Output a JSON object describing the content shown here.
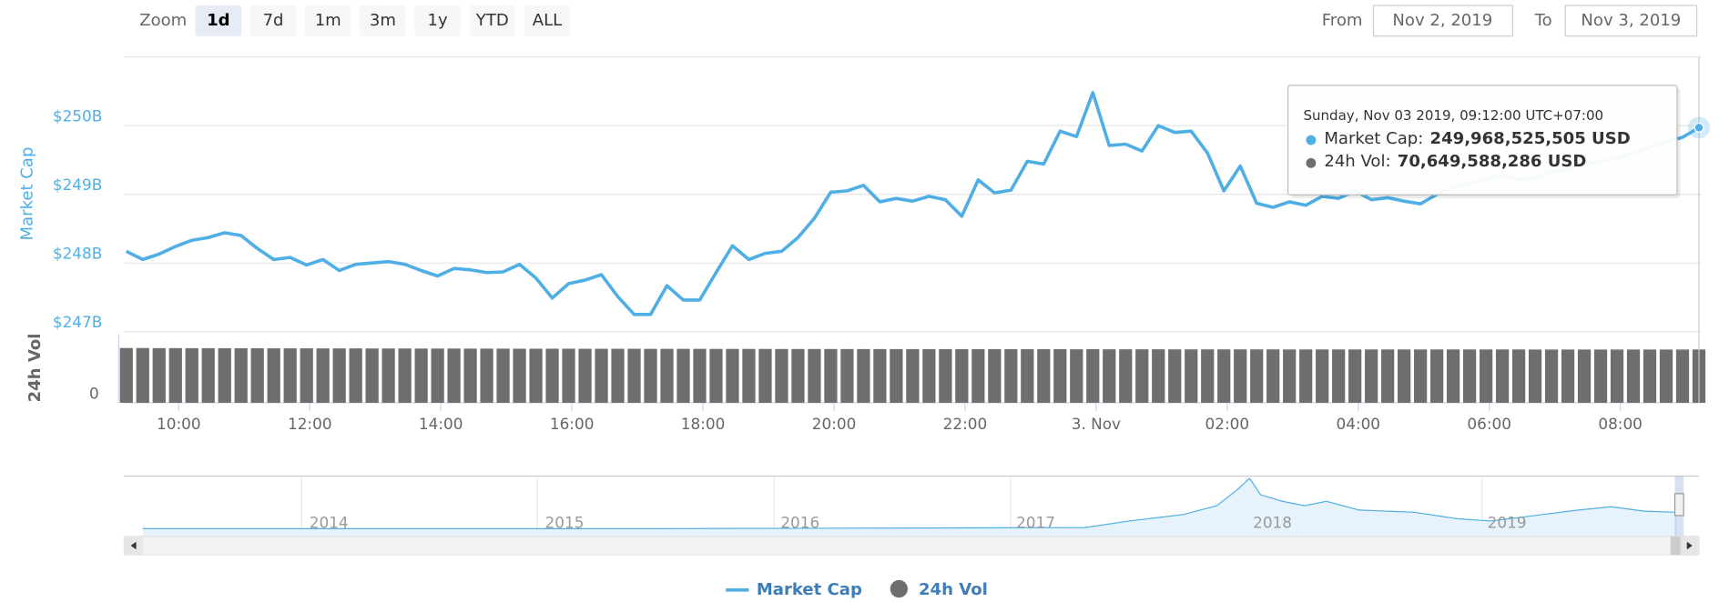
{
  "chart_data": {
    "type": "line",
    "range_selector": {
      "label": "Zoom",
      "buttons": [
        "1d",
        "7d",
        "1m",
        "3m",
        "1y",
        "YTD",
        "ALL"
      ],
      "selected": 0,
      "from_label": "From",
      "from_value": "Nov 2, 2019",
      "to_label": "To",
      "to_value": "Nov 3, 2019"
    },
    "y_axis_title": "Market Cap",
    "y2_axis_title": "24h Vol",
    "x": [
      9.2,
      9.45,
      9.7,
      9.95,
      10.2,
      10.45,
      10.7,
      10.95,
      11.2,
      11.45,
      11.7,
      11.95,
      12.2,
      12.45,
      12.7,
      12.95,
      13.2,
      13.45,
      13.7,
      13.95,
      14.2,
      14.45,
      14.7,
      14.95,
      15.2,
      15.45,
      15.7,
      15.95,
      16.2,
      16.45,
      16.7,
      16.95,
      17.2,
      17.45,
      17.7,
      17.95,
      18.2,
      18.45,
      18.7,
      18.95,
      19.2,
      19.45,
      19.7,
      19.95,
      20.2,
      20.45,
      20.7,
      20.95,
      21.2,
      21.45,
      21.7,
      21.95,
      22.2,
      22.45,
      22.7,
      22.95,
      23.2,
      23.45,
      23.7,
      23.95,
      24.2,
      24.45,
      24.7,
      24.95,
      25.2,
      25.45,
      25.7,
      25.95,
      26.2,
      26.45,
      26.7,
      26.95,
      27.2,
      27.45,
      27.7,
      27.95,
      28.2,
      28.45,
      28.7,
      28.95,
      29.2,
      29.45,
      29.7,
      29.95,
      30.2,
      30.45,
      30.7,
      30.95,
      31.2,
      31.45,
      31.7,
      31.95,
      32.2,
      32.45,
      32.7,
      32.95,
      33.2
    ],
    "xlim": [
      9.2,
      33.2
    ],
    "xticks": [
      {
        "value": 10,
        "label": "10:00"
      },
      {
        "value": 12,
        "label": "12:00"
      },
      {
        "value": 14,
        "label": "14:00"
      },
      {
        "value": 16,
        "label": "16:00"
      },
      {
        "value": 18,
        "label": "18:00"
      },
      {
        "value": 20,
        "label": "20:00"
      },
      {
        "value": 22,
        "label": "22:00"
      },
      {
        "value": 24,
        "label": "3. Nov"
      },
      {
        "value": 26,
        "label": "02:00"
      },
      {
        "value": 28,
        "label": "04:00"
      },
      {
        "value": 30,
        "label": "06:00"
      },
      {
        "value": 32,
        "label": "08:00"
      }
    ],
    "ylim": [
      247,
      251
    ],
    "yticks": [
      {
        "value": 247,
        "label": "$247B"
      },
      {
        "value": 248,
        "label": "$248B"
      },
      {
        "value": 249,
        "label": "$249B"
      },
      {
        "value": 250,
        "label": "$250B"
      }
    ],
    "y2lim": [
      0,
      91.4
    ],
    "y2ticks": [
      0
    ],
    "grid": true,
    "series": [
      {
        "name": "Market Cap",
        "color": "#4fafe5",
        "values": [
          248.17,
          248.05,
          248.13,
          248.24,
          248.33,
          248.37,
          248.44,
          248.4,
          248.21,
          248.05,
          248.08,
          247.97,
          248.05,
          247.89,
          247.98,
          248.0,
          248.02,
          247.98,
          247.89,
          247.81,
          247.92,
          247.9,
          247.86,
          247.87,
          247.98,
          247.78,
          247.49,
          247.7,
          247.75,
          247.83,
          247.51,
          247.25,
          247.25,
          247.67,
          247.46,
          247.46,
          247.86,
          248.25,
          248.05,
          248.14,
          248.17,
          248.37,
          248.65,
          249.03,
          249.05,
          249.13,
          248.89,
          248.94,
          248.9,
          248.97,
          248.92,
          248.68,
          249.21,
          249.02,
          249.06,
          249.48,
          249.44,
          249.92,
          249.84,
          250.48,
          249.71,
          249.73,
          249.63,
          250.0,
          249.9,
          249.92,
          249.6,
          249.05,
          249.41,
          248.87,
          248.81,
          248.89,
          248.84,
          248.97,
          248.94,
          249.05,
          248.92,
          248.95,
          248.9,
          248.86,
          249.0,
          249.1,
          249.16,
          249.21,
          249.29,
          249.21,
          249.24,
          249.32,
          249.37,
          249.44,
          249.48,
          249.52,
          249.6,
          249.68,
          249.76,
          249.83,
          249.97
        ]
      },
      {
        "name": "24h Vol",
        "color": "#6e6e6e",
        "type": "column",
        "axis": "y2",
        "values": [
          72.6,
          72.6,
          72.5,
          72.5,
          72.4,
          72.4,
          72.3,
          72.3,
          72.3,
          72.2,
          72.2,
          72.2,
          72.1,
          72.1,
          72.1,
          72.0,
          72.0,
          72.0,
          71.9,
          71.9,
          71.9,
          71.8,
          71.8,
          71.8,
          71.7,
          71.7,
          71.7,
          71.7,
          71.6,
          71.6,
          71.6,
          71.6,
          71.5,
          71.5,
          71.5,
          71.5,
          71.4,
          71.4,
          71.4,
          71.4,
          71.3,
          71.3,
          71.3,
          71.3,
          71.2,
          71.2,
          71.2,
          71.2,
          71.1,
          71.1,
          71.1,
          71.1,
          71.1,
          71.0,
          71.0,
          71.0,
          71.0,
          71.0,
          70.9,
          71.1,
          70.9,
          70.9,
          70.9,
          70.9,
          70.8,
          70.8,
          70.8,
          70.8,
          70.8,
          70.8,
          70.8,
          70.7,
          70.7,
          70.7,
          70.7,
          70.7,
          70.7,
          70.7,
          70.7,
          70.7,
          70.7,
          70.7,
          70.7,
          70.7,
          70.7,
          70.7,
          70.6,
          70.6,
          70.6,
          70.6,
          70.6,
          70.6,
          70.6,
          70.6,
          70.6,
          70.6,
          70.65
        ]
      }
    ],
    "tooltip": {
      "header": "Sunday, Nov 03 2019, 09:12:00 UTC+07:00",
      "rows": [
        {
          "label": "Market Cap:",
          "value": "249,968,525,505 USD"
        },
        {
          "label": "24h Vol:",
          "value": "70,649,588,286 USD"
        }
      ]
    },
    "navigator": {
      "labels": [
        "2014",
        "2015",
        "2016",
        "2017",
        "2018",
        "2019"
      ]
    }
  }
}
